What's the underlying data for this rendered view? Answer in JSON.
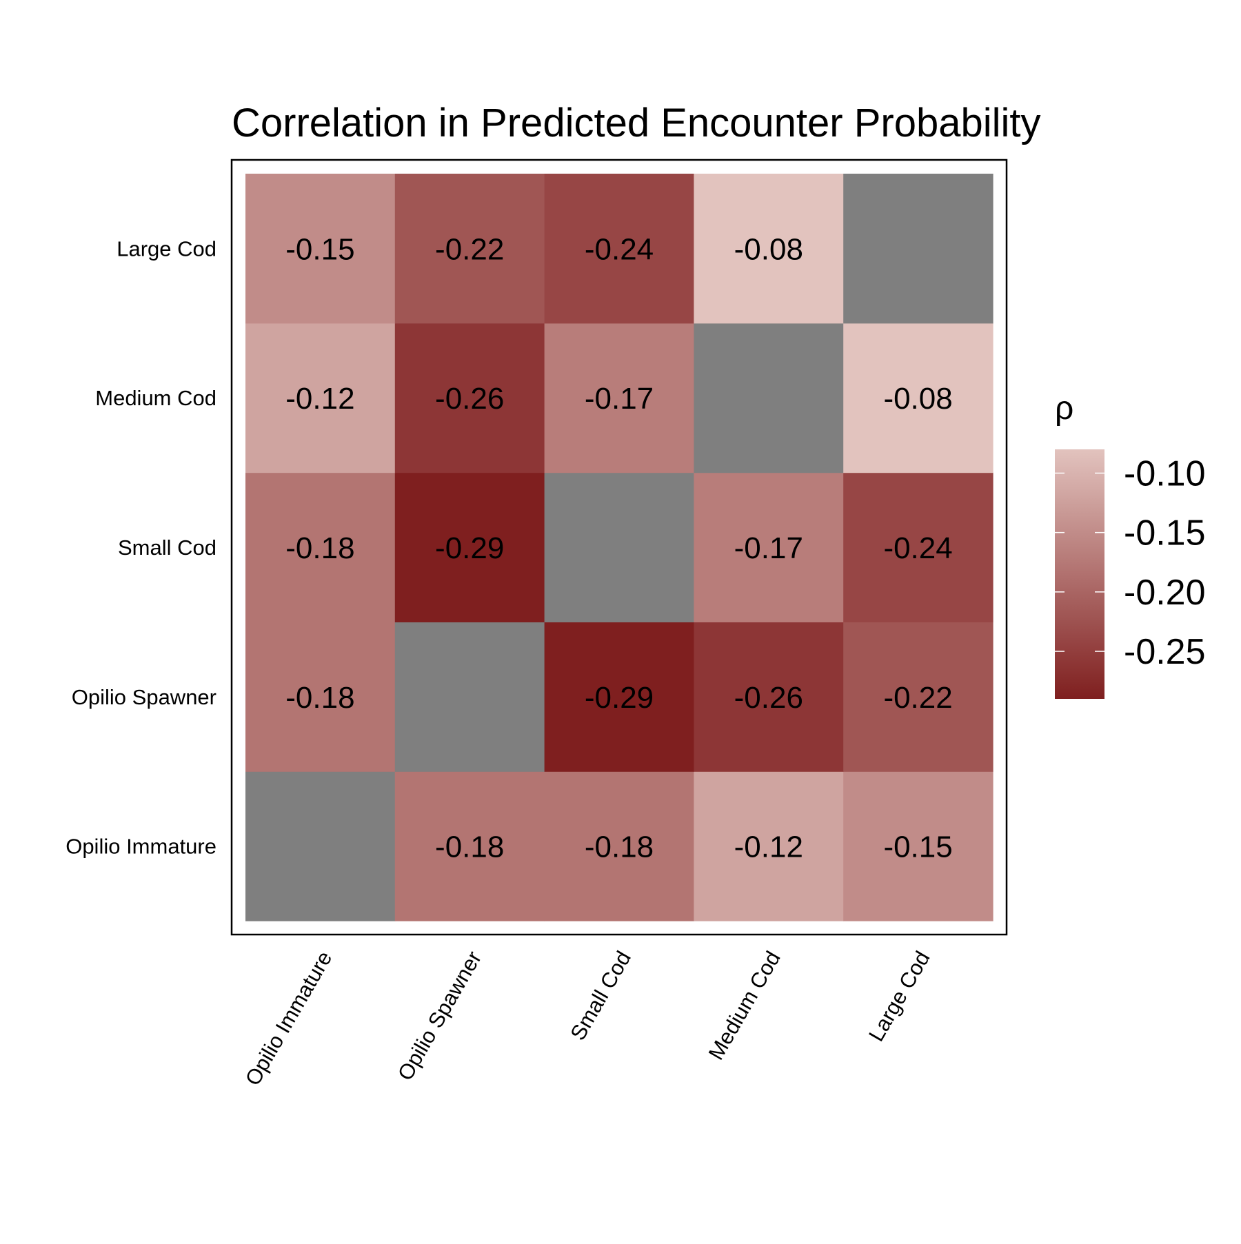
{
  "chart_data": {
    "type": "heatmap",
    "title": "Correlation in Predicted Encounter Probability",
    "x_categories": [
      "Opilio Immature",
      "Opilio Spawner",
      "Small Cod",
      "Medium Cod",
      "Large Cod"
    ],
    "y_categories": [
      "Opilio Immature",
      "Opilio Spawner",
      "Small Cod",
      "Medium Cod",
      "Large Cod"
    ],
    "values": [
      [
        null,
        -0.18,
        -0.18,
        -0.12,
        -0.15
      ],
      [
        -0.18,
        null,
        -0.29,
        -0.26,
        -0.22
      ],
      [
        -0.18,
        -0.29,
        null,
        -0.17,
        -0.24
      ],
      [
        -0.12,
        -0.26,
        -0.17,
        null,
        -0.08
      ],
      [
        -0.15,
        -0.22,
        -0.24,
        -0.08,
        null
      ]
    ],
    "value_labels": [
      [
        "",
        "-0.18",
        "-0.18",
        "-0.12",
        "-0.15"
      ],
      [
        "-0.18",
        "",
        "-0.29",
        "-0.26",
        "-0.22"
      ],
      [
        "-0.18",
        "-0.29",
        "",
        "-0.17",
        "-0.24"
      ],
      [
        "-0.12",
        "-0.26",
        "-0.17",
        "",
        "-0.08"
      ],
      [
        "-0.15",
        "-0.22",
        "-0.24",
        "-0.08",
        ""
      ]
    ],
    "color_scale": {
      "low": -0.29,
      "high": -0.08,
      "low_color": "#7f1f1f",
      "high_color": "#e2c3be",
      "na_color": "#7f7f7f"
    },
    "legend": {
      "title": "ρ",
      "ticks": [
        -0.1,
        -0.15,
        -0.2,
        -0.25
      ],
      "tick_labels": [
        "-0.10",
        "-0.15",
        "-0.20",
        "-0.25"
      ],
      "position": "right"
    },
    "xlabel": "",
    "ylabel": "",
    "grid": false
  }
}
